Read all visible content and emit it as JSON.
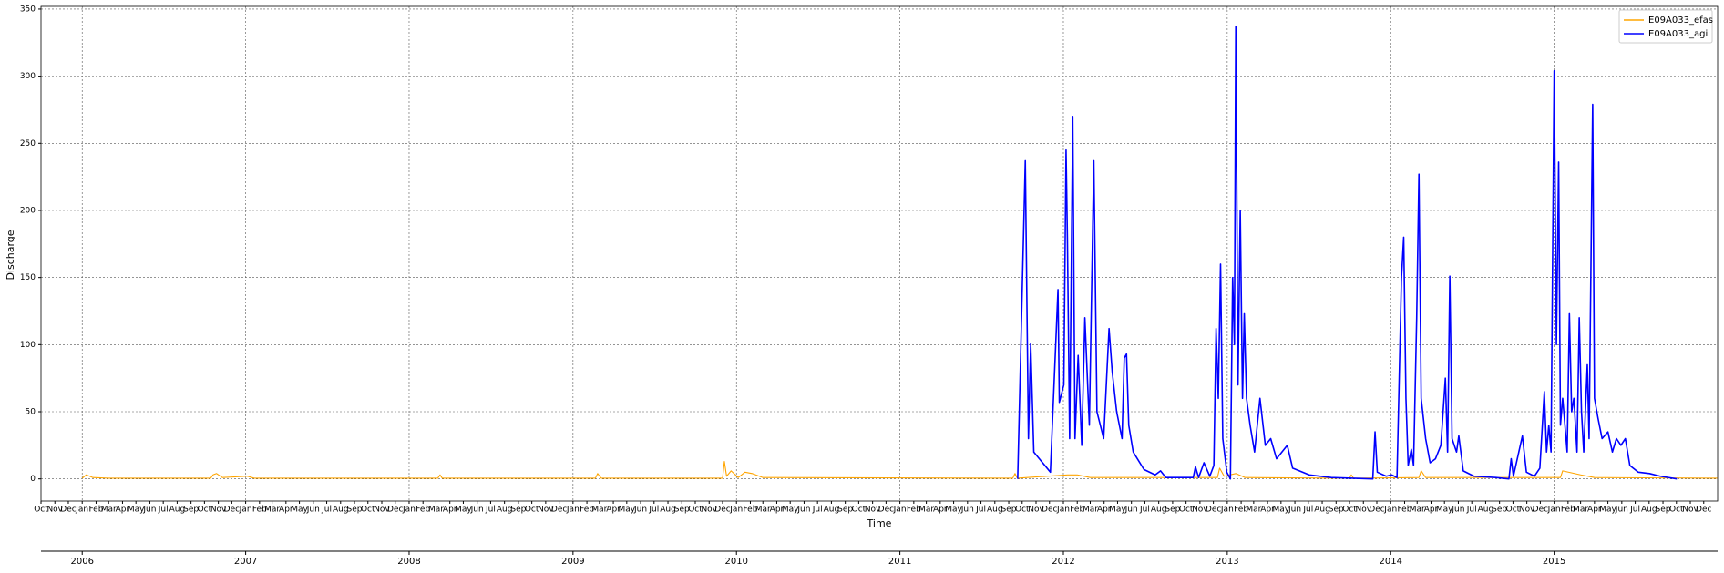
{
  "chart_data": {
    "type": "line",
    "xlabel": "Time",
    "ylabel": "Discharge",
    "xlim": [
      "2005-10-01",
      "2016-01-01"
    ],
    "ylim": [
      -16.5,
      352
    ],
    "yticks": [
      0,
      50,
      100,
      150,
      200,
      250,
      300,
      350
    ],
    "grid": true,
    "legend": "upper right",
    "xticks": [
      {
        "value": "2005-10-01",
        "label": "Oct"
      },
      {
        "value": "2005-11-01",
        "label": "Nov"
      },
      {
        "value": "2005-12-01",
        "label": "Dec"
      },
      {
        "value": "2006-01-01",
        "label": "Jan"
      },
      {
        "value": "2006-02-01",
        "label": "Feb"
      },
      {
        "value": "2006-03-01",
        "label": "Mar"
      },
      {
        "value": "2006-04-01",
        "label": "Apr"
      },
      {
        "value": "2006-05-01",
        "label": "May"
      },
      {
        "value": "2006-06-01",
        "label": "Jun"
      },
      {
        "value": "2006-07-01",
        "label": "Jul"
      },
      {
        "value": "2006-08-01",
        "label": "Aug"
      },
      {
        "value": "2006-09-01",
        "label": "Sep"
      },
      {
        "value": "2006-10-01",
        "label": "Oct"
      },
      {
        "value": "2006-11-01",
        "label": "Nov"
      },
      {
        "value": "2006-12-01",
        "label": "Dec"
      },
      {
        "value": "2007-01-01",
        "label": "Jan"
      },
      {
        "value": "2007-02-01",
        "label": "Feb"
      },
      {
        "value": "2007-03-01",
        "label": "Mar"
      },
      {
        "value": "2007-04-01",
        "label": "Apr"
      },
      {
        "value": "2007-05-01",
        "label": "May"
      },
      {
        "value": "2007-06-01",
        "label": "Jun"
      },
      {
        "value": "2007-07-01",
        "label": "Jul"
      },
      {
        "value": "2007-08-01",
        "label": "Aug"
      },
      {
        "value": "2007-09-01",
        "label": "Sep"
      },
      {
        "value": "2007-10-01",
        "label": "Oct"
      },
      {
        "value": "2007-11-01",
        "label": "Nov"
      },
      {
        "value": "2007-12-01",
        "label": "Dec"
      },
      {
        "value": "2008-01-01",
        "label": "Jan"
      },
      {
        "value": "2008-02-01",
        "label": "Feb"
      },
      {
        "value": "2008-03-01",
        "label": "Mar"
      },
      {
        "value": "2008-04-01",
        "label": "Apr"
      },
      {
        "value": "2008-05-01",
        "label": "May"
      },
      {
        "value": "2008-06-01",
        "label": "Jun"
      },
      {
        "value": "2008-07-01",
        "label": "Jul"
      },
      {
        "value": "2008-08-01",
        "label": "Aug"
      },
      {
        "value": "2008-09-01",
        "label": "Sep"
      },
      {
        "value": "2008-10-01",
        "label": "Oct"
      },
      {
        "value": "2008-11-01",
        "label": "Nov"
      },
      {
        "value": "2008-12-01",
        "label": "Dec"
      },
      {
        "value": "2009-01-01",
        "label": "Jan"
      },
      {
        "value": "2009-02-01",
        "label": "Feb"
      },
      {
        "value": "2009-03-01",
        "label": "Mar"
      },
      {
        "value": "2009-04-01",
        "label": "Apr"
      },
      {
        "value": "2009-05-01",
        "label": "May"
      },
      {
        "value": "2009-06-01",
        "label": "Jun"
      },
      {
        "value": "2009-07-01",
        "label": "Jul"
      },
      {
        "value": "2009-08-01",
        "label": "Aug"
      },
      {
        "value": "2009-09-01",
        "label": "Sep"
      },
      {
        "value": "2009-10-01",
        "label": "Oct"
      },
      {
        "value": "2009-11-01",
        "label": "Nov"
      },
      {
        "value": "2009-12-01",
        "label": "Dec"
      },
      {
        "value": "2010-01-01",
        "label": "Jan"
      },
      {
        "value": "2010-02-01",
        "label": "Feb"
      },
      {
        "value": "2010-03-01",
        "label": "Mar"
      },
      {
        "value": "2010-04-01",
        "label": "Apr"
      },
      {
        "value": "2010-05-01",
        "label": "May"
      },
      {
        "value": "2010-06-01",
        "label": "Jun"
      },
      {
        "value": "2010-07-01",
        "label": "Jul"
      },
      {
        "value": "2010-08-01",
        "label": "Aug"
      },
      {
        "value": "2010-09-01",
        "label": "Sep"
      },
      {
        "value": "2010-10-01",
        "label": "Oct"
      },
      {
        "value": "2010-11-01",
        "label": "Nov"
      },
      {
        "value": "2010-12-01",
        "label": "Dec"
      },
      {
        "value": "2011-01-01",
        "label": "Jan"
      },
      {
        "value": "2011-02-01",
        "label": "Feb"
      },
      {
        "value": "2011-03-01",
        "label": "Mar"
      },
      {
        "value": "2011-04-01",
        "label": "Apr"
      },
      {
        "value": "2011-05-01",
        "label": "May"
      },
      {
        "value": "2011-06-01",
        "label": "Jun"
      },
      {
        "value": "2011-07-01",
        "label": "Jul"
      },
      {
        "value": "2011-08-01",
        "label": "Aug"
      },
      {
        "value": "2011-09-01",
        "label": "Sep"
      },
      {
        "value": "2011-10-01",
        "label": "Oct"
      },
      {
        "value": "2011-11-01",
        "label": "Nov"
      },
      {
        "value": "2011-12-01",
        "label": "Dec"
      },
      {
        "value": "2012-01-01",
        "label": "Jan"
      },
      {
        "value": "2012-02-01",
        "label": "Feb"
      },
      {
        "value": "2012-03-01",
        "label": "Mar"
      },
      {
        "value": "2012-04-01",
        "label": "Apr"
      },
      {
        "value": "2012-05-01",
        "label": "May"
      },
      {
        "value": "2012-06-01",
        "label": "Jun"
      },
      {
        "value": "2012-07-01",
        "label": "Jul"
      },
      {
        "value": "2012-08-01",
        "label": "Aug"
      },
      {
        "value": "2012-09-01",
        "label": "Sep"
      },
      {
        "value": "2012-10-01",
        "label": "Oct"
      },
      {
        "value": "2012-11-01",
        "label": "Nov"
      },
      {
        "value": "2012-12-01",
        "label": "Dec"
      },
      {
        "value": "2013-01-01",
        "label": "Jan"
      },
      {
        "value": "2013-02-01",
        "label": "Feb"
      },
      {
        "value": "2013-03-01",
        "label": "Mar"
      },
      {
        "value": "2013-04-01",
        "label": "Apr"
      },
      {
        "value": "2013-05-01",
        "label": "May"
      },
      {
        "value": "2013-06-01",
        "label": "Jun"
      },
      {
        "value": "2013-07-01",
        "label": "Jul"
      },
      {
        "value": "2013-08-01",
        "label": "Aug"
      },
      {
        "value": "2013-09-01",
        "label": "Sep"
      },
      {
        "value": "2013-10-01",
        "label": "Oct"
      },
      {
        "value": "2013-11-01",
        "label": "Nov"
      },
      {
        "value": "2013-12-01",
        "label": "Dec"
      },
      {
        "value": "2014-01-01",
        "label": "Jan"
      },
      {
        "value": "2014-02-01",
        "label": "Feb"
      },
      {
        "value": "2014-03-01",
        "label": "Mar"
      },
      {
        "value": "2014-04-01",
        "label": "Apr"
      },
      {
        "value": "2014-05-01",
        "label": "May"
      },
      {
        "value": "2014-06-01",
        "label": "Jun"
      },
      {
        "value": "2014-07-01",
        "label": "Jul"
      },
      {
        "value": "2014-08-01",
        "label": "Aug"
      },
      {
        "value": "2014-09-01",
        "label": "Sep"
      },
      {
        "value": "2014-10-01",
        "label": "Oct"
      },
      {
        "value": "2014-11-01",
        "label": "Nov"
      },
      {
        "value": "2014-12-01",
        "label": "Dec"
      },
      {
        "value": "2015-01-01",
        "label": "Jan"
      },
      {
        "value": "2015-02-01",
        "label": "Feb"
      },
      {
        "value": "2015-03-01",
        "label": "Mar"
      },
      {
        "value": "2015-04-01",
        "label": "Apr"
      },
      {
        "value": "2015-05-01",
        "label": "May"
      },
      {
        "value": "2015-06-01",
        "label": "Jun"
      },
      {
        "value": "2015-07-01",
        "label": "Jul"
      },
      {
        "value": "2015-08-01",
        "label": "Aug"
      },
      {
        "value": "2015-09-01",
        "label": "Sep"
      },
      {
        "value": "2015-10-01",
        "label": "Oct"
      },
      {
        "value": "2015-11-01",
        "label": "Nov"
      },
      {
        "value": "2015-12-01",
        "label": "Dec"
      }
    ],
    "x2ticks": [
      {
        "value": "2006-01-01",
        "label": "2006"
      },
      {
        "value": "2007-01-01",
        "label": "2007"
      },
      {
        "value": "2008-01-01",
        "label": "2008"
      },
      {
        "value": "2009-01-01",
        "label": "2009"
      },
      {
        "value": "2010-01-01",
        "label": "2010"
      },
      {
        "value": "2011-01-01",
        "label": "2011"
      },
      {
        "value": "2012-01-01",
        "label": "2012"
      },
      {
        "value": "2013-01-01",
        "label": "2013"
      },
      {
        "value": "2014-01-01",
        "label": "2014"
      },
      {
        "value": "2015-01-01",
        "label": "2015"
      }
    ],
    "series": [
      {
        "name": "E09A033_efas",
        "color": "#ffa500",
        "x": [
          "2006-01-01",
          "2006-01-10",
          "2006-01-25",
          "2006-03-01",
          "2006-10-15",
          "2006-10-20",
          "2006-10-28",
          "2006-11-10",
          "2007-01-05",
          "2007-01-20",
          "2008-03-05",
          "2008-03-10",
          "2008-03-15",
          "2009-02-20",
          "2009-02-25",
          "2009-03-05",
          "2009-12-01",
          "2009-12-05",
          "2009-12-10",
          "2009-12-20",
          "2010-01-05",
          "2010-01-20",
          "2010-02-05",
          "2010-03-01",
          "2011-09-10",
          "2011-09-15",
          "2011-09-20",
          "2012-01-10",
          "2012-02-01",
          "2012-03-01",
          "2012-12-10",
          "2012-12-15",
          "2012-12-25",
          "2013-01-20",
          "2013-02-10",
          "2013-10-01",
          "2013-10-05",
          "2013-10-10",
          "2014-03-05",
          "2014-03-10",
          "2014-03-20",
          "2015-01-15",
          "2015-01-20",
          "2015-03-01",
          "2015-04-01",
          "2015-12-31"
        ],
        "values": [
          0.5,
          3,
          1,
          0.5,
          0.5,
          3,
          4,
          1,
          2,
          0.5,
          0.5,
          3,
          0.5,
          0.5,
          4,
          0.5,
          0.5,
          13,
          2,
          6,
          1,
          5,
          4,
          1,
          0.5,
          4,
          0.5,
          3,
          3,
          1,
          1,
          8,
          2,
          4,
          1,
          0.5,
          3,
          0.5,
          1,
          6,
          1,
          1,
          6,
          3,
          1,
          0.5
        ]
      },
      {
        "name": "E09A033_agi",
        "color": "#0000ff",
        "x": [
          "2011-09-21",
          "2011-10-08",
          "2011-10-15",
          "2011-10-20",
          "2011-10-27",
          "2011-12-03",
          "2011-12-20",
          "2011-12-23",
          "2012-01-02",
          "2012-01-07",
          "2012-01-10",
          "2012-01-15",
          "2012-01-22",
          "2012-01-27",
          "2012-02-03",
          "2012-02-11",
          "2012-02-18",
          "2012-02-28",
          "2012-03-09",
          "2012-03-16",
          "2012-03-31",
          "2012-04-12",
          "2012-04-19",
          "2012-04-29",
          "2012-05-11",
          "2012-05-16",
          "2012-05-21",
          "2012-05-26",
          "2012-06-05",
          "2012-06-29",
          "2012-07-24",
          "2012-08-05",
          "2012-08-17",
          "2012-10-17",
          "2012-10-22",
          "2012-10-29",
          "2012-11-10",
          "2012-11-23",
          "2012-12-02",
          "2012-12-07",
          "2012-12-12",
          "2012-12-17",
          "2012-12-22",
          "2012-12-31",
          "2013-01-08",
          "2013-01-13",
          "2013-01-17",
          "2013-01-20",
          "2013-01-25",
          "2013-01-30",
          "2013-02-04",
          "2013-02-08",
          "2013-02-13",
          "2013-02-21",
          "2013-03-03",
          "2013-03-15",
          "2013-03-27",
          "2013-04-08",
          "2013-04-21",
          "2013-05-15",
          "2013-05-27",
          "2013-07-03",
          "2013-08-21",
          "2013-11-22",
          "2013-11-27",
          "2013-12-02",
          "2013-12-22",
          "2014-01-03",
          "2014-01-15",
          "2014-01-25",
          "2014-01-30",
          "2014-02-04",
          "2014-02-09",
          "2014-02-16",
          "2014-02-21",
          "2014-02-28",
          "2014-03-05",
          "2014-03-10",
          "2014-03-20",
          "2014-03-30",
          "2014-04-11",
          "2014-04-23",
          "2014-05-03",
          "2014-05-08",
          "2014-05-13",
          "2014-05-18",
          "2014-05-28",
          "2014-06-02",
          "2014-06-12",
          "2014-07-06",
          "2014-08-24",
          "2014-09-22",
          "2014-09-27",
          "2014-10-02",
          "2014-10-22",
          "2014-10-31",
          "2014-11-18",
          "2014-11-30",
          "2014-12-10",
          "2014-12-15",
          "2014-12-20",
          "2014-12-25",
          "2015-01-01",
          "2015-01-06",
          "2015-01-11",
          "2015-01-15",
          "2015-01-20",
          "2015-01-30",
          "2015-02-04",
          "2015-02-09",
          "2015-02-14",
          "2015-02-21",
          "2015-02-26",
          "2015-03-03",
          "2015-03-08",
          "2015-03-16",
          "2015-03-20",
          "2015-03-28",
          "2015-04-01",
          "2015-04-09",
          "2015-04-18",
          "2015-05-01",
          "2015-05-11",
          "2015-05-20",
          "2015-05-30",
          "2015-06-09",
          "2015-06-19",
          "2015-07-08",
          "2015-08-02",
          "2015-08-26",
          "2015-10-02"
        ],
        "values": [
          0,
          237,
          30,
          101,
          20,
          5,
          141,
          57,
          70,
          245,
          180,
          30,
          270,
          30,
          92,
          25,
          120,
          40,
          237,
          50,
          30,
          112,
          80,
          50,
          30,
          90,
          93,
          40,
          20,
          7,
          3,
          6,
          1,
          1,
          9,
          1,
          12,
          2,
          10,
          112,
          60,
          160,
          30,
          5,
          0,
          150,
          100,
          337,
          70,
          200,
          60,
          123,
          60,
          40,
          20,
          60,
          25,
          30,
          15,
          25,
          8,
          3,
          1,
          0,
          35,
          5,
          2,
          3,
          1,
          150,
          180,
          60,
          10,
          22,
          10,
          120,
          227,
          60,
          30,
          12,
          15,
          25,
          75,
          20,
          151,
          30,
          20,
          32,
          6,
          2,
          1,
          0,
          15,
          2,
          32,
          5,
          2,
          8,
          65,
          20,
          40,
          20,
          304,
          100,
          236,
          40,
          60,
          20,
          123,
          50,
          60,
          20,
          120,
          50,
          20,
          85,
          30,
          279,
          60,
          45,
          30,
          35,
          20,
          30,
          25,
          30,
          10,
          5,
          4,
          2,
          0
        ]
      }
    ]
  }
}
